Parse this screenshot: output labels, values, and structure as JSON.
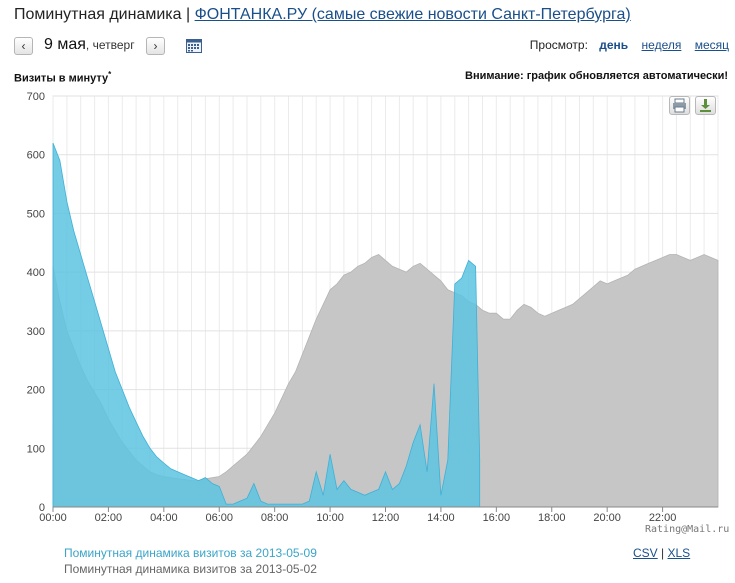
{
  "header": {
    "prefix": "Поминутная динамика |",
    "site_link": "ФОНТАНКА.РУ (самые свежие новости Санкт-Петербурга)"
  },
  "datebar": {
    "prev": "‹",
    "next": "›",
    "day": "9 мая",
    "weekday": "четверг",
    "calendar_icon": "calendar-icon"
  },
  "view": {
    "label": "Просмотр:",
    "day": "день",
    "week": "неделя",
    "month": "месяц"
  },
  "chart_labels": {
    "ylabel": "Визиты в минуту",
    "ylabel_mark": "*",
    "notice": "Внимание: график обновляется автоматически!",
    "credit": "Rating@Mail.ru"
  },
  "tools": {
    "print_icon": "printer-icon",
    "download_icon": "download-icon"
  },
  "legend": {
    "current": "Поминутная динамика визитов за 2013-05-09",
    "previous": "Поминутная динамика визитов за 2013-05-02"
  },
  "exports": {
    "csv": "CSV",
    "sep": "|",
    "xls": "XLS"
  },
  "colors": {
    "current": "#5cc3e0",
    "previous": "#c6c6c6",
    "link": "#1a4f8a"
  },
  "chart_data": {
    "type": "area",
    "ylabel": "Визиты в минуту",
    "ylim": [
      0,
      700
    ],
    "yticks": [
      0,
      100,
      200,
      300,
      400,
      500,
      600,
      700
    ],
    "xticks": [
      "00:00",
      "02:00",
      "04:00",
      "06:00",
      "08:00",
      "10:00",
      "12:00",
      "14:00",
      "16:00",
      "18:00",
      "20:00",
      "22:00"
    ],
    "xlim": [
      0,
      24
    ],
    "x_unit": "hours",
    "grid": true,
    "series": [
      {
        "name": "2013-05-02",
        "color": "#c6c6c6",
        "points": [
          [
            0,
            410
          ],
          [
            0.25,
            350
          ],
          [
            0.5,
            300
          ],
          [
            0.75,
            270
          ],
          [
            1,
            240
          ],
          [
            1.25,
            215
          ],
          [
            1.5,
            195
          ],
          [
            1.75,
            175
          ],
          [
            2,
            150
          ],
          [
            2.25,
            130
          ],
          [
            2.5,
            110
          ],
          [
            2.75,
            95
          ],
          [
            3,
            80
          ],
          [
            3.25,
            70
          ],
          [
            3.5,
            60
          ],
          [
            3.75,
            55
          ],
          [
            4,
            52
          ],
          [
            4.25,
            50
          ],
          [
            4.5,
            48
          ],
          [
            4.75,
            47
          ],
          [
            5,
            45
          ],
          [
            5.25,
            45
          ],
          [
            5.5,
            48
          ],
          [
            5.75,
            50
          ],
          [
            6,
            52
          ],
          [
            6.25,
            60
          ],
          [
            6.5,
            70
          ],
          [
            6.75,
            80
          ],
          [
            7,
            90
          ],
          [
            7.25,
            105
          ],
          [
            7.5,
            120
          ],
          [
            7.75,
            140
          ],
          [
            8,
            160
          ],
          [
            8.25,
            185
          ],
          [
            8.5,
            210
          ],
          [
            8.75,
            230
          ],
          [
            9,
            260
          ],
          [
            9.25,
            290
          ],
          [
            9.5,
            320
          ],
          [
            9.75,
            345
          ],
          [
            10,
            370
          ],
          [
            10.25,
            380
          ],
          [
            10.5,
            395
          ],
          [
            10.75,
            400
          ],
          [
            11,
            410
          ],
          [
            11.25,
            415
          ],
          [
            11.5,
            425
          ],
          [
            11.75,
            430
          ],
          [
            12,
            420
          ],
          [
            12.25,
            410
          ],
          [
            12.5,
            405
          ],
          [
            12.75,
            400
          ],
          [
            13,
            410
          ],
          [
            13.25,
            415
          ],
          [
            13.5,
            405
          ],
          [
            13.75,
            395
          ],
          [
            14,
            385
          ],
          [
            14.25,
            370
          ],
          [
            14.5,
            365
          ],
          [
            14.75,
            360
          ],
          [
            15,
            350
          ],
          [
            15.25,
            345
          ],
          [
            15.5,
            335
          ],
          [
            15.75,
            330
          ],
          [
            16,
            330
          ],
          [
            16.25,
            320
          ],
          [
            16.5,
            320
          ],
          [
            16.75,
            335
          ],
          [
            17,
            345
          ],
          [
            17.25,
            340
          ],
          [
            17.5,
            330
          ],
          [
            17.75,
            325
          ],
          [
            18,
            330
          ],
          [
            18.25,
            335
          ],
          [
            18.5,
            340
          ],
          [
            18.75,
            345
          ],
          [
            19,
            355
          ],
          [
            19.25,
            365
          ],
          [
            19.5,
            375
          ],
          [
            19.75,
            385
          ],
          [
            20,
            380
          ],
          [
            20.25,
            385
          ],
          [
            20.5,
            390
          ],
          [
            20.75,
            395
          ],
          [
            21,
            405
          ],
          [
            21.25,
            410
          ],
          [
            21.5,
            415
          ],
          [
            21.75,
            420
          ],
          [
            22,
            425
          ],
          [
            22.25,
            430
          ],
          [
            22.5,
            430
          ],
          [
            22.75,
            425
          ],
          [
            23,
            420
          ],
          [
            23.25,
            425
          ],
          [
            23.5,
            430
          ],
          [
            23.75,
            425
          ],
          [
            24,
            420
          ]
        ]
      },
      {
        "name": "2013-05-09",
        "color": "#5cc3e0",
        "points": [
          [
            0,
            620
          ],
          [
            0.25,
            590
          ],
          [
            0.5,
            520
          ],
          [
            0.75,
            470
          ],
          [
            1,
            430
          ],
          [
            1.25,
            390
          ],
          [
            1.5,
            350
          ],
          [
            1.75,
            310
          ],
          [
            2,
            270
          ],
          [
            2.25,
            230
          ],
          [
            2.5,
            200
          ],
          [
            2.75,
            170
          ],
          [
            3,
            145
          ],
          [
            3.25,
            120
          ],
          [
            3.5,
            100
          ],
          [
            3.75,
            85
          ],
          [
            4,
            75
          ],
          [
            4.25,
            65
          ],
          [
            4.5,
            60
          ],
          [
            4.75,
            55
          ],
          [
            5,
            50
          ],
          [
            5.25,
            45
          ],
          [
            5.5,
            50
          ],
          [
            5.75,
            40
          ],
          [
            6,
            35
          ],
          [
            6.25,
            5
          ],
          [
            6.5,
            5
          ],
          [
            6.75,
            10
          ],
          [
            7,
            15
          ],
          [
            7.25,
            40
          ],
          [
            7.5,
            10
          ],
          [
            7.75,
            5
          ],
          [
            8,
            5
          ],
          [
            8.25,
            5
          ],
          [
            8.5,
            5
          ],
          [
            8.75,
            5
          ],
          [
            9,
            5
          ],
          [
            9.25,
            10
          ],
          [
            9.5,
            60
          ],
          [
            9.75,
            20
          ],
          [
            10,
            90
          ],
          [
            10.25,
            30
          ],
          [
            10.5,
            45
          ],
          [
            10.75,
            30
          ],
          [
            11,
            25
          ],
          [
            11.25,
            20
          ],
          [
            11.5,
            25
          ],
          [
            11.75,
            30
          ],
          [
            12,
            60
          ],
          [
            12.25,
            30
          ],
          [
            12.5,
            40
          ],
          [
            12.75,
            70
          ],
          [
            13,
            110
          ],
          [
            13.25,
            140
          ],
          [
            13.5,
            60
          ],
          [
            13.75,
            210
          ],
          [
            14,
            20
          ],
          [
            14.25,
            80
          ],
          [
            14.5,
            380
          ],
          [
            14.75,
            390
          ],
          [
            15,
            420
          ],
          [
            15.25,
            410
          ],
          [
            15.4,
            80
          ]
        ]
      }
    ]
  }
}
